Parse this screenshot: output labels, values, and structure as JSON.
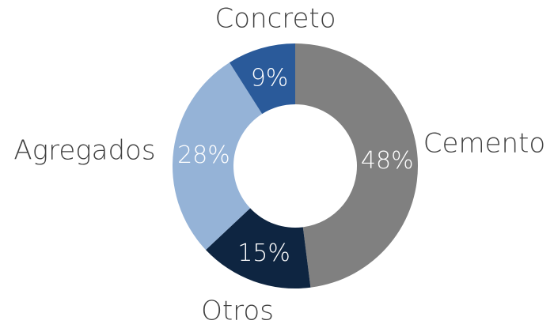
{
  "chart_data": {
    "type": "donut",
    "categories": [
      "Cemento",
      "Otros",
      "Agregados",
      "Concreto"
    ],
    "values": [
      48,
      15,
      28,
      9
    ],
    "value_labels": [
      "48%",
      "15%",
      "28%",
      "9%"
    ],
    "colors": [
      "#808080",
      "#0e2541",
      "#95b3d7",
      "#2a5a9a"
    ]
  }
}
